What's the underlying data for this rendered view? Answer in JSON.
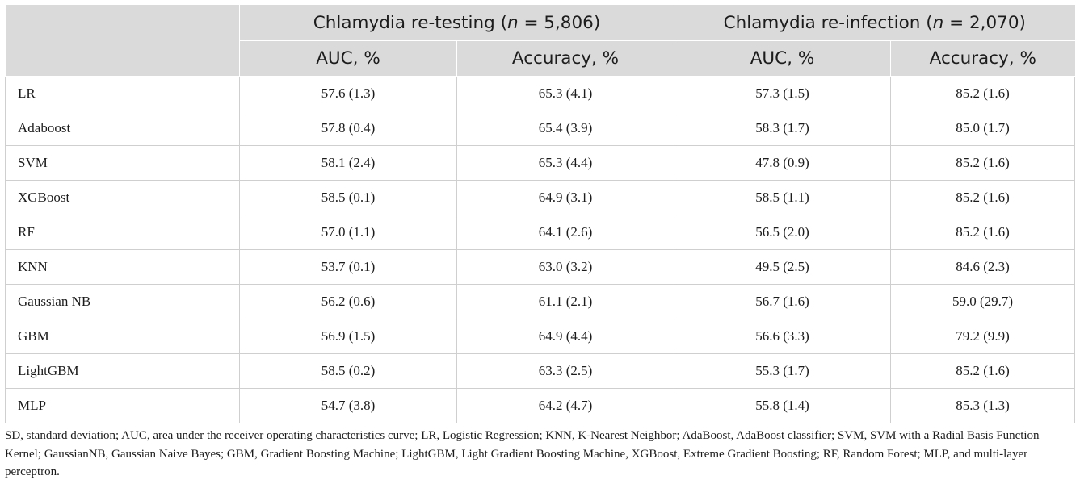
{
  "header": {
    "group1": {
      "prefix": "Chlamydia re-testing (",
      "n_var": "n",
      "suffix": " = 5,806)"
    },
    "group2": {
      "prefix": "Chlamydia re-infection (",
      "n_var": "n",
      "suffix": " = 2,070)"
    },
    "subcols": [
      "AUC, %",
      "Accuracy, %",
      "AUC, %",
      "Accuracy, %"
    ]
  },
  "rows": [
    {
      "model": "LR",
      "values": [
        "57.6 (1.3)",
        "65.3 (4.1)",
        "57.3 (1.5)",
        "85.2 (1.6)"
      ]
    },
    {
      "model": "Adaboost",
      "values": [
        "57.8 (0.4)",
        "65.4 (3.9)",
        "58.3 (1.7)",
        "85.0 (1.7)"
      ]
    },
    {
      "model": "SVM",
      "values": [
        "58.1 (2.4)",
        "65.3 (4.4)",
        "47.8 (0.9)",
        "85.2 (1.6)"
      ]
    },
    {
      "model": "XGBoost",
      "values": [
        "58.5 (0.1)",
        "64.9 (3.1)",
        "58.5 (1.1)",
        "85.2 (1.6)"
      ]
    },
    {
      "model": "RF",
      "values": [
        "57.0 (1.1)",
        "64.1 (2.6)",
        "56.5 (2.0)",
        "85.2 (1.6)"
      ]
    },
    {
      "model": "KNN",
      "values": [
        "53.7 (0.1)",
        "63.0 (3.2)",
        "49.5 (2.5)",
        "84.6 (2.3)"
      ]
    },
    {
      "model": "Gaussian NB",
      "values": [
        "56.2 (0.6)",
        "61.1 (2.1)",
        "56.7 (1.6)",
        "59.0 (29.7)"
      ]
    },
    {
      "model": "GBM",
      "values": [
        "56.9 (1.5)",
        "64.9 (4.4)",
        "56.6 (3.3)",
        "79.2 (9.9)"
      ]
    },
    {
      "model": "LightGBM",
      "values": [
        "58.5 (0.2)",
        "63.3 (2.5)",
        "55.3 (1.7)",
        "85.2 (1.6)"
      ]
    },
    {
      "model": "MLP",
      "values": [
        "54.7 (3.8)",
        "64.2 (4.7)",
        "55.8 (1.4)",
        "85.3 (1.3)"
      ]
    }
  ],
  "footnote": "SD, standard deviation; AUC, area under the receiver operating characteristics curve; LR, Logistic Regression; KNN, K-Nearest Neighbor; AdaBoost, AdaBoost classifier; SVM, SVM with a Radial Basis Function Kernel; GaussianNB, Gaussian Naive Bayes; GBM, Gradient Boosting Machine; LightGBM, Light Gradient Boosting Machine, XGBoost, Extreme Gradient Boosting; RF, Random Forest; MLP, and multi-layer perceptron."
}
